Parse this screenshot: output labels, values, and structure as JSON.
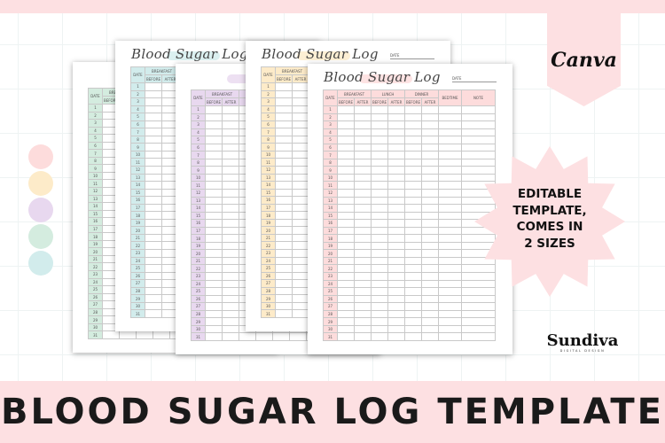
{
  "colors": {
    "pink": "#fddcdc",
    "yellow": "#fdebc9",
    "purple": "#e8d8ef",
    "green": "#d4ecdf",
    "teal": "#d2ecec",
    "banner": "#fde0e2"
  },
  "swatches": [
    "#fddcdc",
    "#fdebc9",
    "#e8d8ef",
    "#d4ecdf",
    "#d2ecec"
  ],
  "log": {
    "title": "Blood Sugar Log",
    "date_label": "DATE",
    "col_date": "DATE",
    "groups": [
      "BREAKFAST",
      "LUNCH",
      "DINNER"
    ],
    "sub": [
      "BEFORE",
      "AFTER"
    ],
    "col_bedtime": "BEDTIME",
    "col_note": "NOTE",
    "days": [
      1,
      2,
      3,
      4,
      5,
      6,
      7,
      8,
      9,
      10,
      11,
      12,
      13,
      14,
      15,
      16,
      17,
      18,
      19,
      20,
      21,
      22,
      23,
      24,
      25,
      26,
      27,
      28,
      29,
      30,
      31
    ]
  },
  "pages": [
    {
      "accent": "#d4ecdf"
    },
    {
      "accent": "#d2ecec"
    },
    {
      "accent": "#e8d8ef"
    },
    {
      "accent": "#fdebc9"
    },
    {
      "accent": "#fddcdc"
    }
  ],
  "badge": {
    "brand": "Canva"
  },
  "starburst": {
    "lines": [
      "EDITABLE",
      "TEMPLATE,",
      "COMES IN",
      "2 SIZES"
    ]
  },
  "logo": {
    "name": "Sundiva",
    "tagline": "DIGITAL DESIGN"
  },
  "banner": {
    "title": "BLOOD SUGAR LOG TEMPLATE"
  }
}
